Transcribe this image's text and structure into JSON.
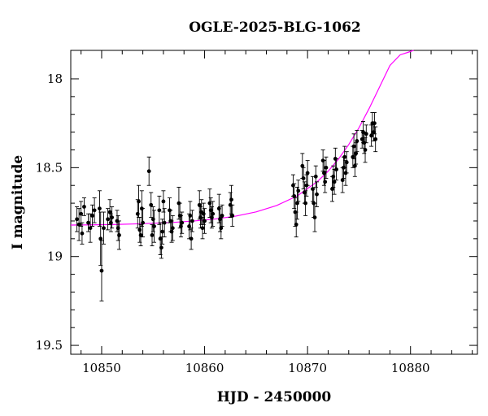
{
  "chart_data": {
    "type": "scatter",
    "title": "OGLE-2025-BLG-1062",
    "xlabel": "HJD - 2450000",
    "ylabel": "I magnitude",
    "xlim": [
      10847,
      10886.5
    ],
    "ylim": [
      19.55,
      17.84
    ],
    "y_inverted": true,
    "x_ticks": [
      10850,
      10860,
      10870,
      10880
    ],
    "y_ticks": [
      18,
      18.5,
      19,
      19.5
    ],
    "x_tick_labels": [
      "10850",
      "10860",
      "10870",
      "10880"
    ],
    "y_tick_labels": [
      "18",
      "18.5",
      "19",
      "19.5"
    ],
    "grid": false,
    "legend": "none",
    "series": [
      {
        "kind": "points_with_errorbars",
        "color": "#000000",
        "points": [
          [
            10847.6,
            18.79,
            0.07
          ],
          [
            10847.8,
            18.82,
            0.09
          ],
          [
            10848.0,
            18.76,
            0.07
          ],
          [
            10848.1,
            18.87,
            0.06
          ],
          [
            10848.3,
            18.72,
            0.05
          ],
          [
            10848.7,
            18.81,
            0.05
          ],
          [
            10848.9,
            18.84,
            0.08
          ],
          [
            10849.1,
            18.77,
            0.06
          ],
          [
            10849.3,
            18.74,
            0.07
          ],
          [
            10849.8,
            18.73,
            0.1
          ],
          [
            10849.9,
            18.9,
            0.15
          ],
          [
            10850.0,
            19.08,
            0.17
          ],
          [
            10850.2,
            18.84,
            0.09
          ],
          [
            10850.6,
            18.79,
            0.06
          ],
          [
            10850.8,
            18.75,
            0.07
          ],
          [
            10850.9,
            18.81,
            0.05
          ],
          [
            10851.0,
            18.78,
            0.06
          ],
          [
            10851.5,
            18.8,
            0.06
          ],
          [
            10851.6,
            18.84,
            0.07
          ],
          [
            10851.7,
            18.88,
            0.08
          ],
          [
            10853.5,
            18.76,
            0.08
          ],
          [
            10853.6,
            18.69,
            0.09
          ],
          [
            10853.7,
            18.85,
            0.07
          ],
          [
            10853.8,
            18.88,
            0.06
          ],
          [
            10853.9,
            18.73,
            0.1
          ],
          [
            10854.0,
            18.81,
            0.08
          ],
          [
            10854.6,
            18.52,
            0.08
          ],
          [
            10854.8,
            18.71,
            0.07
          ],
          [
            10854.9,
            18.88,
            0.06
          ],
          [
            10855.0,
            18.79,
            0.07
          ],
          [
            10855.1,
            18.83,
            0.09
          ],
          [
            10855.6,
            18.74,
            0.08
          ],
          [
            10855.7,
            18.9,
            0.09
          ],
          [
            10855.8,
            18.95,
            0.06
          ],
          [
            10855.9,
            18.86,
            0.07
          ],
          [
            10856.0,
            18.69,
            0.06
          ],
          [
            10856.1,
            18.81,
            0.08
          ],
          [
            10856.6,
            18.74,
            0.07
          ],
          [
            10856.7,
            18.8,
            0.06
          ],
          [
            10856.8,
            18.86,
            0.06
          ],
          [
            10856.9,
            18.84,
            0.07
          ],
          [
            10857.5,
            18.7,
            0.09
          ],
          [
            10857.6,
            18.77,
            0.07
          ],
          [
            10857.7,
            18.83,
            0.06
          ],
          [
            10857.8,
            18.81,
            0.06
          ],
          [
            10858.5,
            18.83,
            0.07
          ],
          [
            10858.6,
            18.77,
            0.08
          ],
          [
            10858.7,
            18.9,
            0.06
          ],
          [
            10858.8,
            18.8,
            0.06
          ],
          [
            10859.5,
            18.71,
            0.08
          ],
          [
            10859.6,
            18.78,
            0.06
          ],
          [
            10859.7,
            18.75,
            0.07
          ],
          [
            10859.8,
            18.84,
            0.06
          ],
          [
            10859.9,
            18.76,
            0.06
          ],
          [
            10860.0,
            18.8,
            0.07
          ],
          [
            10860.5,
            18.7,
            0.08
          ],
          [
            10860.6,
            18.74,
            0.07
          ],
          [
            10860.7,
            18.78,
            0.06
          ],
          [
            10860.8,
            18.76,
            0.07
          ],
          [
            10861.4,
            18.73,
            0.08
          ],
          [
            10861.5,
            18.79,
            0.07
          ],
          [
            10861.6,
            18.84,
            0.06
          ],
          [
            10861.7,
            18.77,
            0.06
          ],
          [
            10862.5,
            18.71,
            0.07
          ],
          [
            10862.6,
            18.68,
            0.08
          ],
          [
            10862.7,
            18.77,
            0.06
          ],
          [
            10868.6,
            18.6,
            0.06
          ],
          [
            10868.7,
            18.66,
            0.07
          ],
          [
            10868.8,
            18.75,
            0.08
          ],
          [
            10868.9,
            18.82,
            0.07
          ],
          [
            10869.0,
            18.7,
            0.09
          ],
          [
            10869.1,
            18.63,
            0.06
          ],
          [
            10869.5,
            18.49,
            0.07
          ],
          [
            10869.6,
            18.56,
            0.06
          ],
          [
            10869.7,
            18.64,
            0.06
          ],
          [
            10869.8,
            18.7,
            0.07
          ],
          [
            10869.9,
            18.6,
            0.06
          ],
          [
            10870.0,
            18.53,
            0.07
          ],
          [
            10870.5,
            18.62,
            0.07
          ],
          [
            10870.6,
            18.7,
            0.08
          ],
          [
            10870.7,
            18.78,
            0.08
          ],
          [
            10870.8,
            18.55,
            0.06
          ],
          [
            10870.9,
            18.65,
            0.07
          ],
          [
            10871.5,
            18.46,
            0.06
          ],
          [
            10871.6,
            18.53,
            0.07
          ],
          [
            10871.7,
            18.58,
            0.06
          ],
          [
            10871.8,
            18.5,
            0.06
          ],
          [
            10872.4,
            18.62,
            0.07
          ],
          [
            10872.5,
            18.55,
            0.06
          ],
          [
            10872.6,
            18.58,
            0.07
          ],
          [
            10872.7,
            18.45,
            0.06
          ],
          [
            10872.8,
            18.51,
            0.06
          ],
          [
            10873.4,
            18.57,
            0.07
          ],
          [
            10873.5,
            18.5,
            0.06
          ],
          [
            10873.6,
            18.44,
            0.06
          ],
          [
            10873.7,
            18.53,
            0.07
          ],
          [
            10873.8,
            18.47,
            0.06
          ],
          [
            10874.4,
            18.44,
            0.06
          ],
          [
            10874.5,
            18.38,
            0.07
          ],
          [
            10874.6,
            18.49,
            0.06
          ],
          [
            10874.7,
            18.42,
            0.06
          ],
          [
            10874.8,
            18.35,
            0.06
          ],
          [
            10875.3,
            18.34,
            0.05
          ],
          [
            10875.4,
            18.3,
            0.06
          ],
          [
            10875.5,
            18.36,
            0.06
          ],
          [
            10875.6,
            18.4,
            0.07
          ],
          [
            10875.7,
            18.31,
            0.05
          ],
          [
            10876.2,
            18.32,
            0.06
          ],
          [
            10876.3,
            18.25,
            0.06
          ],
          [
            10876.4,
            18.3,
            0.05
          ],
          [
            10876.5,
            18.25,
            0.06
          ],
          [
            10876.6,
            18.34,
            0.07
          ]
        ]
      },
      {
        "kind": "model_curve",
        "color": "#ff00ff",
        "x": [
          10847,
          10849,
          10851,
          10853,
          10855,
          10857,
          10859,
          10861,
          10863,
          10865,
          10867,
          10869,
          10871,
          10872,
          10873,
          10874,
          10875,
          10876,
          10877,
          10878,
          10879,
          10879.7,
          10880.3
        ],
        "y": [
          18.823,
          18.822,
          18.82,
          18.817,
          18.813,
          18.808,
          18.8,
          18.789,
          18.773,
          18.749,
          18.713,
          18.659,
          18.576,
          18.52,
          18.452,
          18.37,
          18.275,
          18.165,
          18.045,
          17.925,
          17.865,
          17.852,
          17.84
        ]
      }
    ]
  }
}
